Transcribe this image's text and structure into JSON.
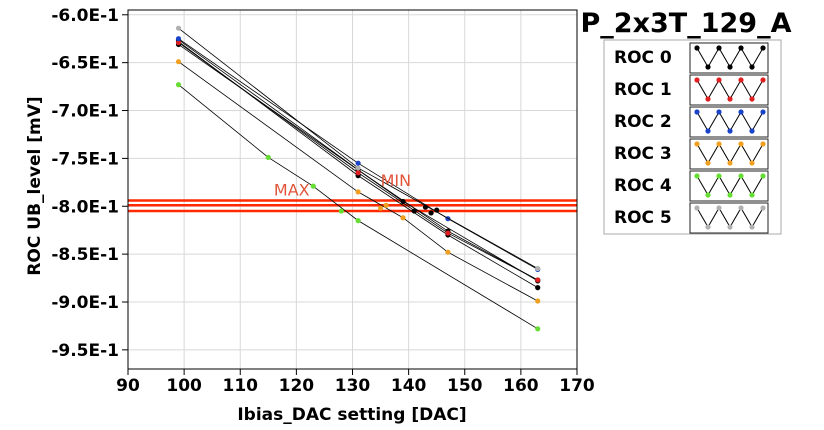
{
  "chart_data": {
    "type": "scatter",
    "title": "P_2x3T_129_A",
    "xlabel": "Ibias_DAC setting [DAC]",
    "ylabel": "ROC UB_level [mV]",
    "xlim": [
      90,
      170
    ],
    "ylim": [
      -0.97,
      -0.595
    ],
    "xticks": [
      90,
      100,
      110,
      120,
      130,
      140,
      150,
      160,
      170
    ],
    "xtick_labels": [
      "90",
      "100",
      "110",
      "120",
      "130",
      "140",
      "150",
      "160",
      "170"
    ],
    "yticks": [
      -0.6,
      -0.65,
      -0.7,
      -0.75,
      -0.8,
      -0.85,
      -0.9,
      -0.95
    ],
    "ytick_labels": [
      "-6.0E-1",
      "-6.5E-1",
      "-7.0E-1",
      "-7.5E-1",
      "-8.0E-1",
      "-8.5E-1",
      "-9.0E-1",
      "-9.5E-1"
    ],
    "grid": true,
    "legend_position": "right",
    "legend": [
      {
        "label": "ROC 0",
        "color": "#000000"
      },
      {
        "label": "ROC 1",
        "color": "#e02020"
      },
      {
        "label": "ROC 2",
        "color": "#1a44c8"
      },
      {
        "label": "ROC 3",
        "color": "#f0a020"
      },
      {
        "label": "ROC 4",
        "color": "#66dd33"
      },
      {
        "label": "ROC 5",
        "color": "#b0b0b0"
      }
    ],
    "series": [
      {
        "name": "ROC 0",
        "color": "#000000",
        "x": [
          99,
          131,
          147,
          163
        ],
        "y": [
          -0.626,
          -0.762,
          -0.826,
          -0.877
        ]
      },
      {
        "name": "ROC 0",
        "color": "#000000",
        "x": [
          99,
          131,
          147,
          163
        ],
        "y": [
          -0.628,
          -0.768,
          -0.83,
          -0.885
        ]
      },
      {
        "name": "ROC 0",
        "color": "#000000",
        "x": [
          99,
          139,
          163
        ],
        "y": [
          -0.631,
          -0.795,
          -0.878
        ]
      },
      {
        "name": "ROC 1",
        "color": "#e02020",
        "x": [
          99,
          131,
          147,
          163
        ],
        "y": [
          -0.629,
          -0.765,
          -0.828,
          -0.877
        ]
      },
      {
        "name": "ROC 2",
        "color": "#1a44c8",
        "x": [
          99,
          131,
          147,
          163
        ],
        "y": [
          -0.625,
          -0.755,
          -0.813,
          -0.866
        ]
      },
      {
        "name": "ROC 3",
        "color": "#f0a020",
        "x": [
          99,
          131,
          139,
          147,
          163
        ],
        "y": [
          -0.649,
          -0.785,
          -0.812,
          -0.848,
          -0.899
        ]
      },
      {
        "name": "ROC 4",
        "color": "#66dd33",
        "x": [
          99,
          115,
          123,
          131,
          163
        ],
        "y": [
          -0.673,
          -0.749,
          -0.779,
          -0.815,
          -0.928
        ]
      },
      {
        "name": "ROC 5",
        "color": "#b0b0b0",
        "x": [
          99,
          131,
          163
        ],
        "y": [
          -0.614,
          -0.76,
          -0.865
        ]
      }
    ],
    "extra_points": [
      {
        "x": 143,
        "y": -0.801,
        "color": "#000000"
      },
      {
        "x": 145,
        "y": -0.804,
        "color": "#000000"
      },
      {
        "x": 144,
        "y": -0.807,
        "color": "#000000"
      },
      {
        "x": 141,
        "y": -0.805,
        "color": "#000000"
      },
      {
        "x": 136,
        "y": -0.799,
        "color": "#f0a020"
      },
      {
        "x": 135,
        "y": -0.802,
        "color": "#f0a020"
      },
      {
        "x": 128,
        "y": -0.805,
        "color": "#66dd33"
      }
    ],
    "hlines": [
      {
        "y": -0.794,
        "color": "#ff2a00"
      },
      {
        "y": -0.799,
        "color": "#ff2a00"
      },
      {
        "y": -0.805,
        "color": "#ff2a00"
      }
    ],
    "annotations": [
      {
        "text": "MAX",
        "x": 116,
        "y": -0.789
      },
      {
        "text": "MIN",
        "x": 135,
        "y": -0.779
      }
    ]
  }
}
